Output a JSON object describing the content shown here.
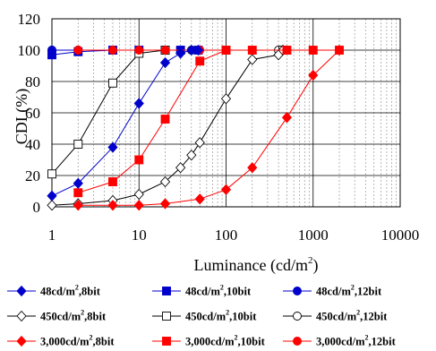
{
  "chart_data": {
    "type": "line",
    "xscale": "log",
    "xlim": [
      1,
      10000
    ],
    "ylim": [
      0,
      120
    ],
    "xticks": [
      1,
      10,
      100,
      1000,
      10000
    ],
    "xtick_labels": [
      "1",
      "10",
      "100",
      "1000",
      "10000"
    ],
    "yticks": [
      0,
      20,
      40,
      60,
      80,
      100,
      120
    ],
    "ytick_labels": [
      "0",
      "20",
      "40",
      "60",
      "80",
      "100",
      "120"
    ],
    "xlabel": {
      "pre": "Luminance (cd/m",
      "sup": "2",
      "post": ")"
    },
    "ylabel": "CDI (%)",
    "grid": {
      "major": true,
      "minor_x": true
    },
    "legend_position": "bottom",
    "series": [
      {
        "name": "48cd/m,8bit",
        "name_parts": {
          "pre": "48cd/m",
          "sup": "2",
          "post": ",8bit"
        },
        "color": "#0000cc",
        "marker": "diamond",
        "fill": "filled",
        "x": [
          1,
          2,
          5,
          10,
          20,
          30,
          40,
          48
        ],
        "y": [
          7,
          15,
          38,
          66,
          92,
          98,
          100,
          100
        ]
      },
      {
        "name": "48cd/m,10bit",
        "name_parts": {
          "pre": "48cd/m",
          "sup": "2",
          "post": ",10bit"
        },
        "color": "#0000cc",
        "marker": "square",
        "fill": "filled",
        "x": [
          1,
          2,
          5,
          10,
          20,
          30,
          48
        ],
        "y": [
          97,
          99,
          100,
          100,
          100,
          100,
          100
        ]
      },
      {
        "name": "48cd/m,12bit",
        "name_parts": {
          "pre": "48cd/m",
          "sup": "2",
          "post": ",12bit"
        },
        "color": "#0000cc",
        "marker": "circle",
        "fill": "filled",
        "x": [
          1,
          2,
          5,
          10,
          20,
          48
        ],
        "y": [
          100,
          100,
          100,
          100,
          100,
          100
        ]
      },
      {
        "name": "450cd/m,8bit",
        "name_parts": {
          "pre": "450cd/m",
          "sup": "2",
          "post": ",8bit"
        },
        "color": "#000000",
        "marker": "diamond",
        "fill": "open",
        "x": [
          1,
          2,
          5,
          10,
          20,
          30,
          40,
          50,
          100,
          200,
          400,
          450
        ],
        "y": [
          1,
          2,
          4,
          8,
          16,
          25,
          33,
          41,
          69,
          94,
          97,
          100
        ]
      },
      {
        "name": "450cd/m,10bit",
        "name_parts": {
          "pre": "450cd/m",
          "sup": "2",
          "post": ",10bit"
        },
        "color": "#000000",
        "marker": "square",
        "fill": "open",
        "x": [
          1,
          2,
          5,
          10,
          20,
          100,
          450
        ],
        "y": [
          21,
          40,
          79,
          98,
          100,
          100,
          100
        ]
      },
      {
        "name": "450cd/m,12bit",
        "name_parts": {
          "pre": "450cd/m",
          "sup": "2",
          "post": ",12bit"
        },
        "color": "#000000",
        "marker": "circle",
        "fill": "open",
        "x": [
          1,
          2,
          5,
          10,
          20,
          30,
          40,
          100,
          400
        ],
        "y": [
          100,
          100,
          100,
          100,
          100,
          100,
          100,
          100,
          100
        ]
      },
      {
        "name": "3,000cd/m,8bit",
        "name_parts": {
          "pre": "3,000cd/m",
          "sup": "2",
          "post": ",8bit"
        },
        "color": "#ff0000",
        "marker": "diamond",
        "fill": "filled",
        "x": [
          2,
          5,
          10,
          20,
          50,
          100,
          200,
          500,
          1000,
          2000
        ],
        "y": [
          1,
          1,
          1,
          2,
          5,
          11,
          25,
          57,
          84,
          100
        ]
      },
      {
        "name": "3,000cd/m,10bit",
        "name_parts": {
          "pre": "3,000cd/m",
          "sup": "2",
          "post": ",10bit"
        },
        "color": "#ff0000",
        "marker": "square",
        "fill": "filled",
        "x": [
          2,
          5,
          10,
          20,
          50,
          100,
          200,
          500,
          1000,
          2000
        ],
        "y": [
          9,
          16,
          30,
          56,
          93,
          100,
          100,
          100,
          100,
          100
        ]
      },
      {
        "name": "3,000cd/m,12bit",
        "name_parts": {
          "pre": "3,000cd/m",
          "sup": "2",
          "post": ",12bit"
        },
        "color": "#ff0000",
        "marker": "circle",
        "fill": "filled",
        "x": [
          2,
          5,
          10,
          20,
          50,
          100,
          200,
          500,
          1000,
          2000
        ],
        "y": [
          100,
          100,
          100,
          100,
          100,
          100,
          100,
          100,
          100,
          100
        ]
      }
    ]
  }
}
